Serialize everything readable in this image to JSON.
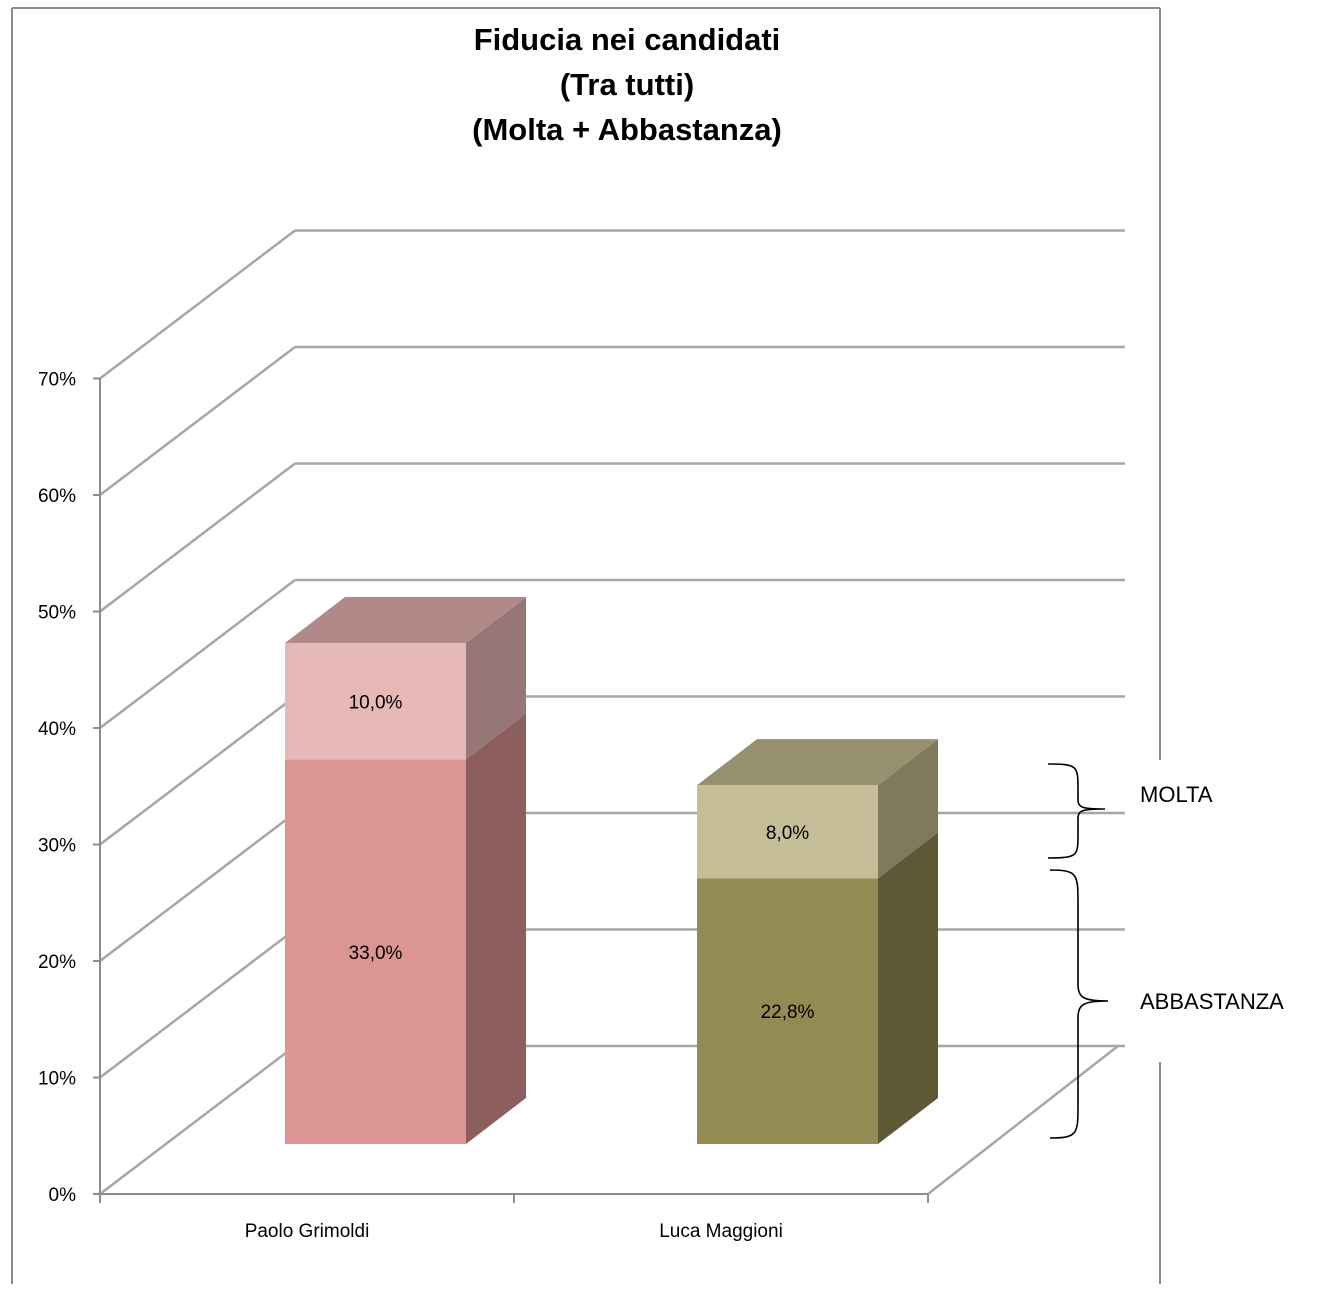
{
  "chart_data": {
    "type": "bar",
    "stacked": true,
    "three_d": true,
    "title": [
      "Fiducia nei candidati",
      "(Tra tutti)",
      "(Molta + Abbastanza)"
    ],
    "categories": [
      "Paolo Grimoldi",
      "Luca Maggioni"
    ],
    "series": [
      {
        "name": "ABBASTANZA",
        "values": [
          33.0,
          22.8
        ],
        "labels": [
          "33,0%",
          "22,8%"
        ],
        "front_colors": [
          "#DB9694",
          "#948A54"
        ],
        "side_colors": [
          "#8C5F5E",
          "#5E5835"
        ],
        "top_colors": [
          "#B08988",
          "#97906E"
        ]
      },
      {
        "name": "MOLTA",
        "values": [
          10.0,
          8.0
        ],
        "labels": [
          "10,0%",
          "8,0%"
        ],
        "front_colors": [
          "#E6B8B7",
          "#C4BD97"
        ],
        "side_colors": [
          "#967776",
          "#7F795E"
        ],
        "top_colors": [
          "#B08988",
          "#97906E"
        ]
      }
    ],
    "ylim": [
      0,
      70
    ],
    "yticks": [
      {
        "value": 0,
        "label": "0%"
      },
      {
        "value": 10,
        "label": "10%"
      },
      {
        "value": 20,
        "label": "20%"
      },
      {
        "value": 30,
        "label": "30%"
      },
      {
        "value": 40,
        "label": "40%"
      },
      {
        "value": 50,
        "label": "50%"
      },
      {
        "value": 60,
        "label": "60%"
      },
      {
        "value": 70,
        "label": "70%"
      }
    ],
    "grid": true,
    "legend": "braces-right",
    "gridline_color": "#A6A6A6",
    "frame_color": "#8C8C8C"
  }
}
